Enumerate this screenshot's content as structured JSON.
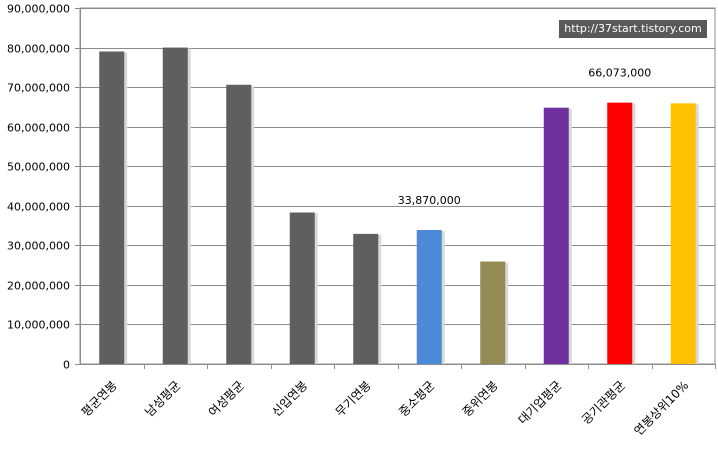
{
  "watermark": "http://37start.tistory.com",
  "chart_data": {
    "type": "bar",
    "categories": [
      "평균연봉",
      "남성평균",
      "여성평균",
      "신입연봉",
      "무기연봉",
      "중소평균",
      "중위연봉",
      "대기업평균",
      "공기관평균",
      "연봉상위10%"
    ],
    "values": [
      79000000,
      80000000,
      70600000,
      38300000,
      32900000,
      33870000,
      25900000,
      64800000,
      66073000,
      65900000
    ],
    "colors": [
      "#5f5f5f",
      "#5f5f5f",
      "#5f5f5f",
      "#5f5f5f",
      "#5f5f5f",
      "#4a8ad6",
      "#948a54",
      "#7030a0",
      "#ff0000",
      "#ffc000"
    ],
    "data_labels": [
      {
        "index": 5,
        "text": "33,870,000"
      },
      {
        "index": 8,
        "text": "66,073,000"
      }
    ],
    "ylim": [
      0,
      90000000
    ],
    "yticks": [
      "0",
      "10,000,000",
      "20,000,000",
      "30,000,000",
      "40,000,000",
      "50,000,000",
      "60,000,000",
      "70,000,000",
      "80,000,000",
      "90,000,000"
    ],
    "grid": true,
    "title": "",
    "xlabel": "",
    "ylabel": ""
  }
}
